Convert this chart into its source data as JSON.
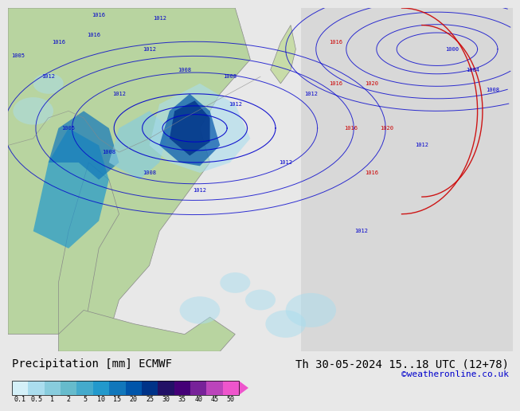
{
  "title_left": "Precipitation [mm] ECMWF",
  "title_right": "Th 30-05-2024 15..18 UTC (12+78)",
  "credit": "©weatheronline.co.uk",
  "colorbar_levels": [
    0.1,
    0.5,
    1,
    2,
    5,
    10,
    15,
    20,
    25,
    30,
    35,
    40,
    45,
    50
  ],
  "colorbar_colors": [
    "#d4f0f8",
    "#aaddee",
    "#88ccdd",
    "#66bbcc",
    "#44aacc",
    "#2299cc",
    "#1177bb",
    "#0055aa",
    "#003388",
    "#221166",
    "#440077",
    "#772299",
    "#bb44bb",
    "#ee55cc"
  ],
  "map_bg_color": "#c8dcc8",
  "sea_color": "#ddeeff",
  "fig_bg": "#e8e8e8",
  "label_color": "#000000",
  "isobar_color_blue": "#0000cc",
  "isobar_color_red": "#cc0000",
  "font_size_title": 10,
  "font_size_credit": 8,
  "font_size_ticks": 8
}
